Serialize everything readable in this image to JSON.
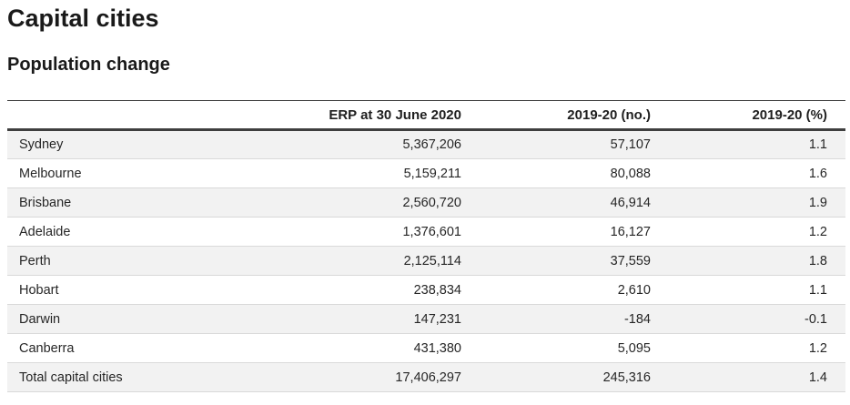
{
  "page": {
    "title": "Capital cities",
    "subtitle": "Population change"
  },
  "table": {
    "columns": [
      "",
      "ERP at 30 June 2020",
      "2019-20 (no.)",
      "2019-20 (%)"
    ],
    "rows": [
      {
        "name": "Sydney",
        "erp": "5,367,206",
        "change_no": "57,107",
        "change_pct": "1.1"
      },
      {
        "name": "Melbourne",
        "erp": "5,159,211",
        "change_no": "80,088",
        "change_pct": "1.6"
      },
      {
        "name": "Brisbane",
        "erp": "2,560,720",
        "change_no": "46,914",
        "change_pct": "1.9"
      },
      {
        "name": "Adelaide",
        "erp": "1,376,601",
        "change_no": "16,127",
        "change_pct": "1.2"
      },
      {
        "name": "Perth",
        "erp": "2,125,114",
        "change_no": "37,559",
        "change_pct": "1.8"
      },
      {
        "name": "Hobart",
        "erp": "238,834",
        "change_no": "2,610",
        "change_pct": "1.1"
      },
      {
        "name": "Darwin",
        "erp": "147,231",
        "change_no": "-184",
        "change_pct": "-0.1"
      },
      {
        "name": "Canberra",
        "erp": "431,380",
        "change_no": "5,095",
        "change_pct": "1.2"
      },
      {
        "name": "Total capital cities",
        "erp": "17,406,297",
        "change_no": "245,316",
        "change_pct": "1.4"
      }
    ]
  },
  "colors": {
    "header_top_border": "#3a3a3a",
    "header_bottom_border": "#3f3f3f",
    "row_stripe": "#f2f2f2",
    "row_divider": "#d9d9d9",
    "text": "#262626"
  }
}
